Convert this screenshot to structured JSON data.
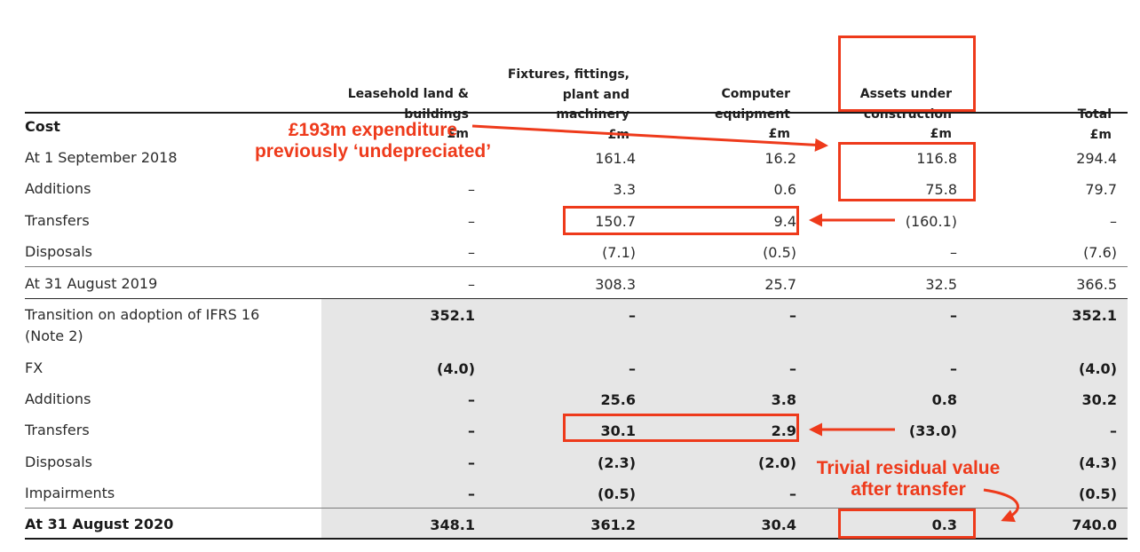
{
  "columns": [
    {
      "lines": [
        "Leasehold land &",
        "buildings",
        "£m"
      ]
    },
    {
      "lines": [
        "Fixtures, fittings,",
        "plant and",
        "machinery",
        "£m"
      ]
    },
    {
      "lines": [
        "Computer",
        "equipment",
        "£m"
      ]
    },
    {
      "lines": [
        "Assets under",
        "construction",
        "£m"
      ]
    },
    {
      "lines": [
        "Total",
        "£m"
      ]
    }
  ],
  "rows": [
    {
      "label": "Cost",
      "bold": true,
      "values": [
        "",
        "",
        "",
        "",
        ""
      ]
    },
    {
      "label": "At 1 September 2018",
      "bold": false,
      "values": [
        "",
        "161.4",
        "16.2",
        "116.8",
        "294.4"
      ]
    },
    {
      "label": "Additions",
      "bold": false,
      "values": [
        "–",
        "3.3",
        "0.6",
        "75.8",
        "79.7"
      ]
    },
    {
      "label": "Transfers",
      "bold": false,
      "values": [
        "–",
        "150.7",
        "9.4",
        "(160.1)",
        "–"
      ]
    },
    {
      "label": "Disposals",
      "bold": false,
      "values": [
        "–",
        "(7.1)",
        "(0.5)",
        "–",
        "(7.6)"
      ]
    },
    {
      "label": "At 31 August 2019",
      "bold": false,
      "values": [
        "–",
        "308.3",
        "25.7",
        "32.5",
        "366.5"
      ]
    },
    {
      "label": "Transition on adoption of IFRS 16\n(Note 2)",
      "bold": false,
      "values": [
        "352.1",
        "–",
        "–",
        "–",
        "352.1"
      ]
    },
    {
      "label": "FX",
      "bold": false,
      "values": [
        "(4.0)",
        "–",
        "–",
        "–",
        "(4.0)"
      ]
    },
    {
      "label": "Additions",
      "bold": false,
      "values": [
        "–",
        "25.6",
        "3.8",
        "0.8",
        "30.2"
      ]
    },
    {
      "label": "Transfers",
      "bold": false,
      "values": [
        "–",
        "30.1",
        "2.9",
        "(33.0)",
        "–"
      ]
    },
    {
      "label": "Disposals",
      "bold": false,
      "values": [
        "–",
        "(2.3)",
        "(2.0)",
        "",
        "(4.3)"
      ]
    },
    {
      "label": "Impairments",
      "bold": false,
      "values": [
        "–",
        "(0.5)",
        "–",
        "",
        "(0.5)"
      ]
    },
    {
      "label": "At 31 August 2020",
      "bold": true,
      "values": [
        "348.1",
        "361.2",
        "30.4",
        "0.3",
        "740.0"
      ]
    }
  ],
  "annotations": {
    "expenditure": "£193m expenditure\npreviously ‘undepreciated’",
    "residual": "Trivial residual value\nafter transfer"
  },
  "colors": {
    "annotation": "#ee3a1b",
    "shade": "#e6e6e6"
  }
}
